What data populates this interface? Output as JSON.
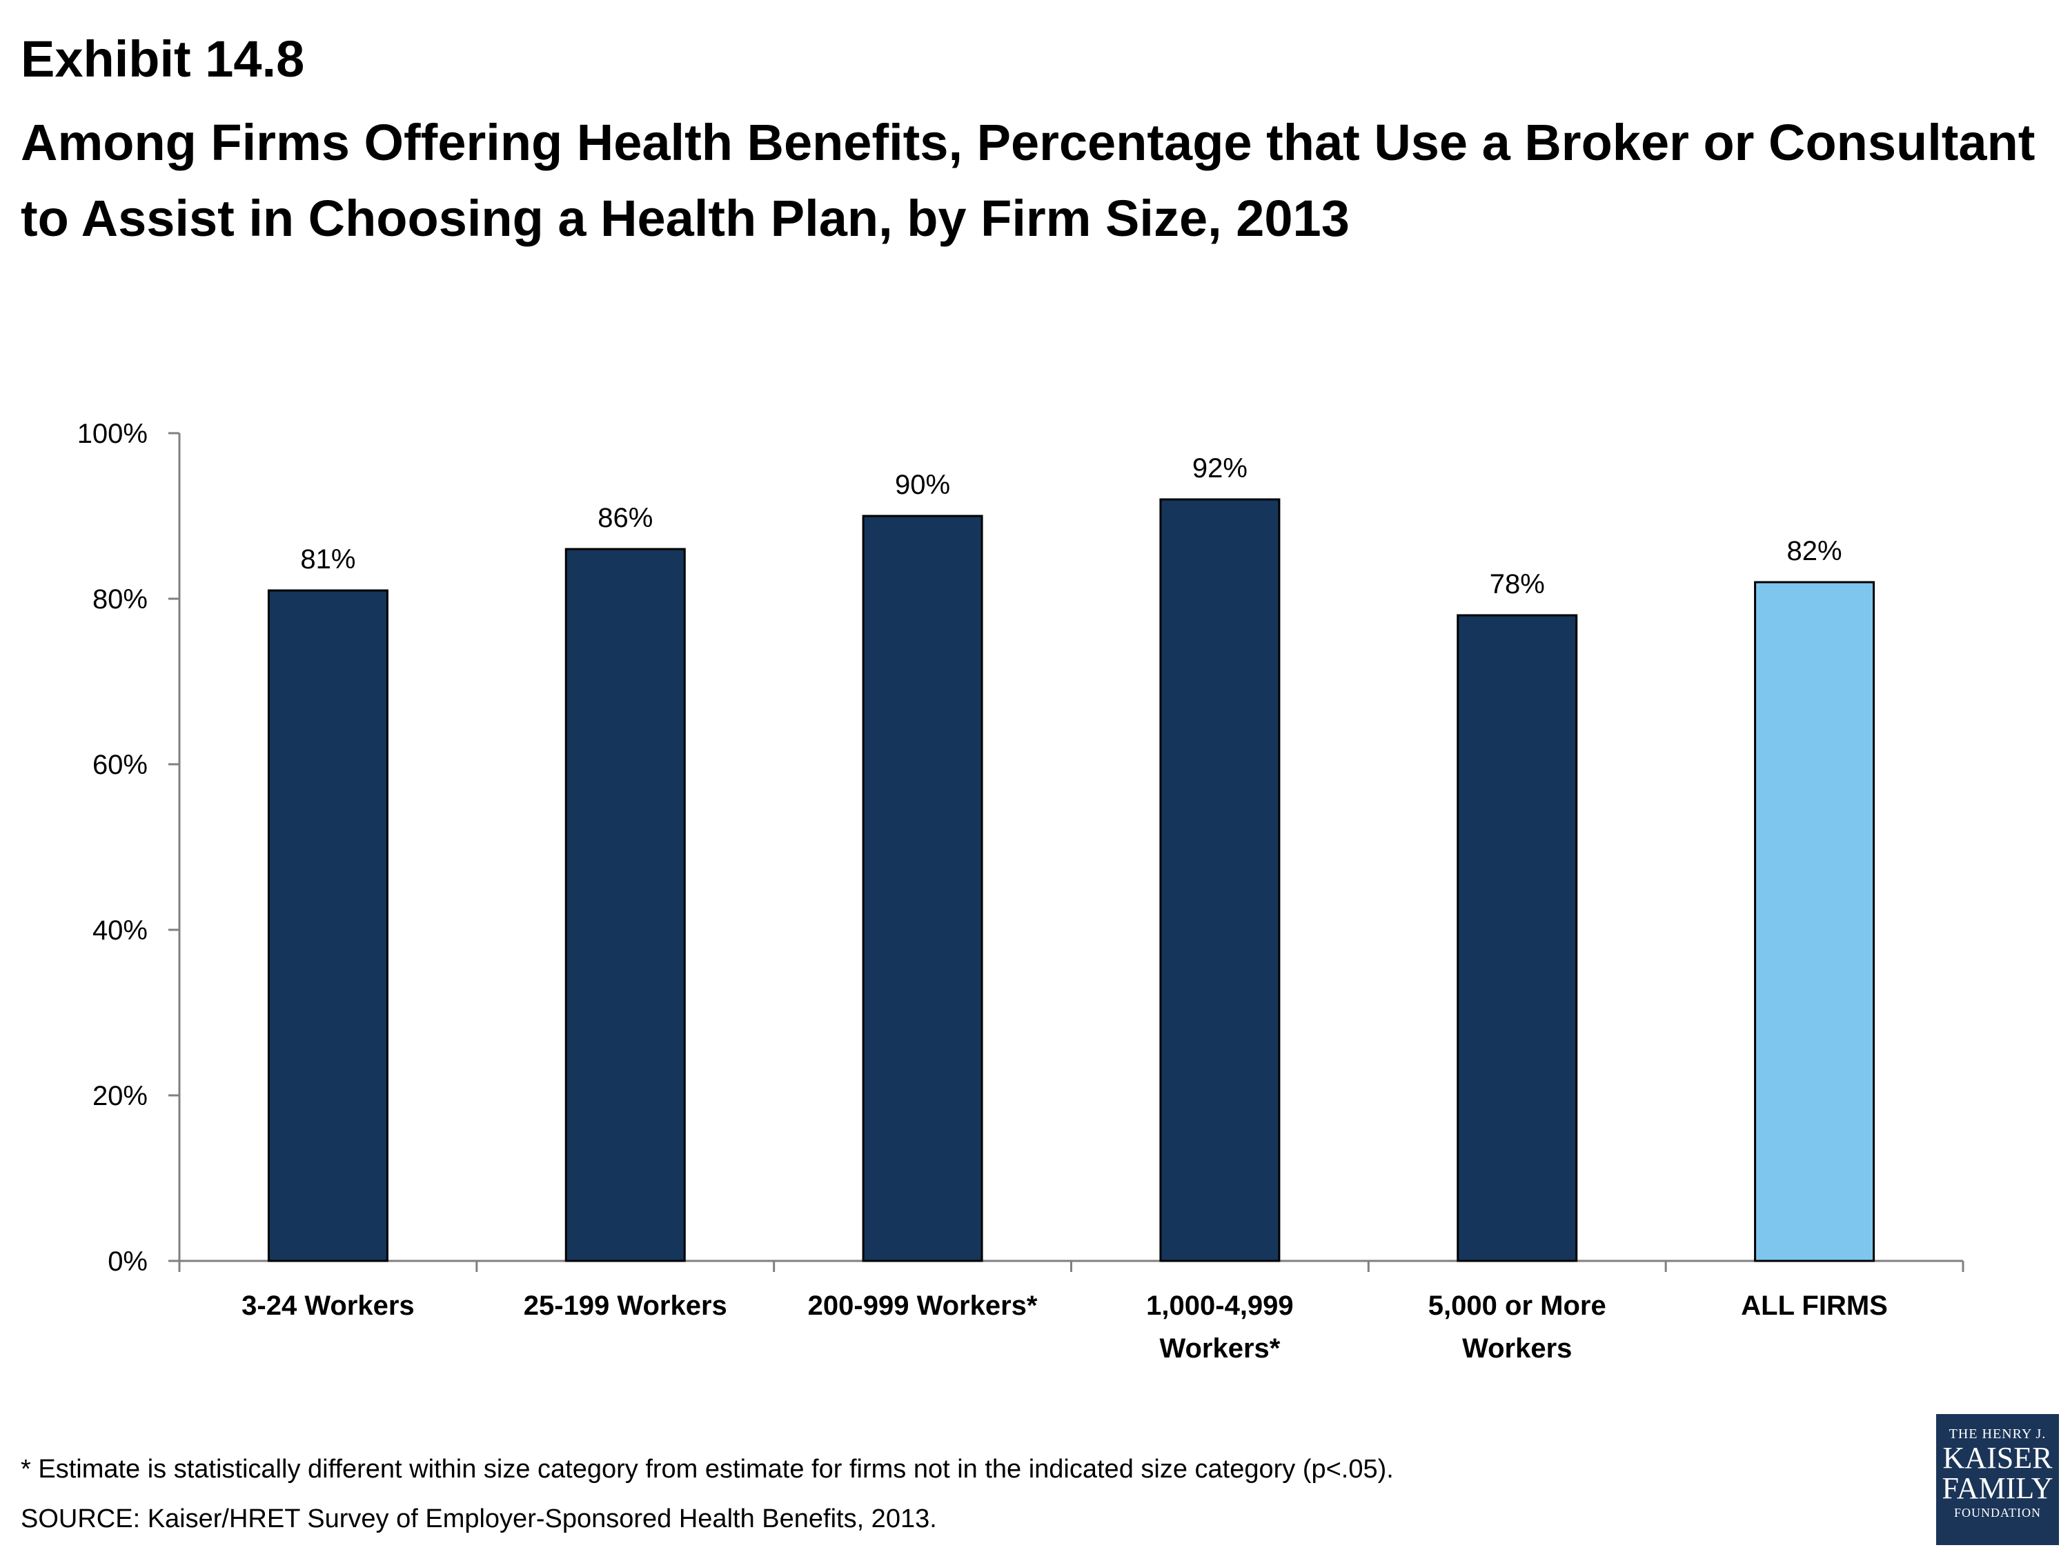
{
  "header": {
    "exhibit": "Exhibit 14.8",
    "title": "Among Firms Offering Health Benefits, Percentage that Use a Broker or Consultant to Assist in Choosing a Health Plan, by Firm Size, 2013"
  },
  "chart_data": {
    "type": "bar",
    "categories": [
      [
        "3-24 Workers"
      ],
      [
        "25-199 Workers"
      ],
      [
        "200-999 Workers*"
      ],
      [
        "1,000-4,999",
        "Workers*"
      ],
      [
        "5,000 or More",
        "Workers"
      ],
      [
        "ALL FIRMS"
      ]
    ],
    "values": [
      81,
      86,
      90,
      92,
      78,
      82
    ],
    "data_labels": [
      "81%",
      "86%",
      "90%",
      "92%",
      "78%",
      "82%"
    ],
    "ylim": [
      0,
      100
    ],
    "yticks": [
      0,
      20,
      40,
      60,
      80,
      100
    ],
    "ytick_labels": [
      "0%",
      "20%",
      "40%",
      "60%",
      "80%",
      "100%"
    ],
    "bar_colors": [
      "#15365a",
      "#15365a",
      "#15365a",
      "#15365a",
      "#15365a",
      "#7fc6ee"
    ],
    "grid": false,
    "legend": "none"
  },
  "footnote": "* Estimate is statistically different within size category from estimate for firms not in the indicated size category (p<.05).",
  "source": "SOURCE: Kaiser/HRET Survey of Employer-Sponsored Health Benefits, 2013.",
  "logo": {
    "line1": "THE HENRY J.",
    "line2": "KAISER",
    "line3": "FAMILY",
    "line4": "FOUNDATION"
  }
}
